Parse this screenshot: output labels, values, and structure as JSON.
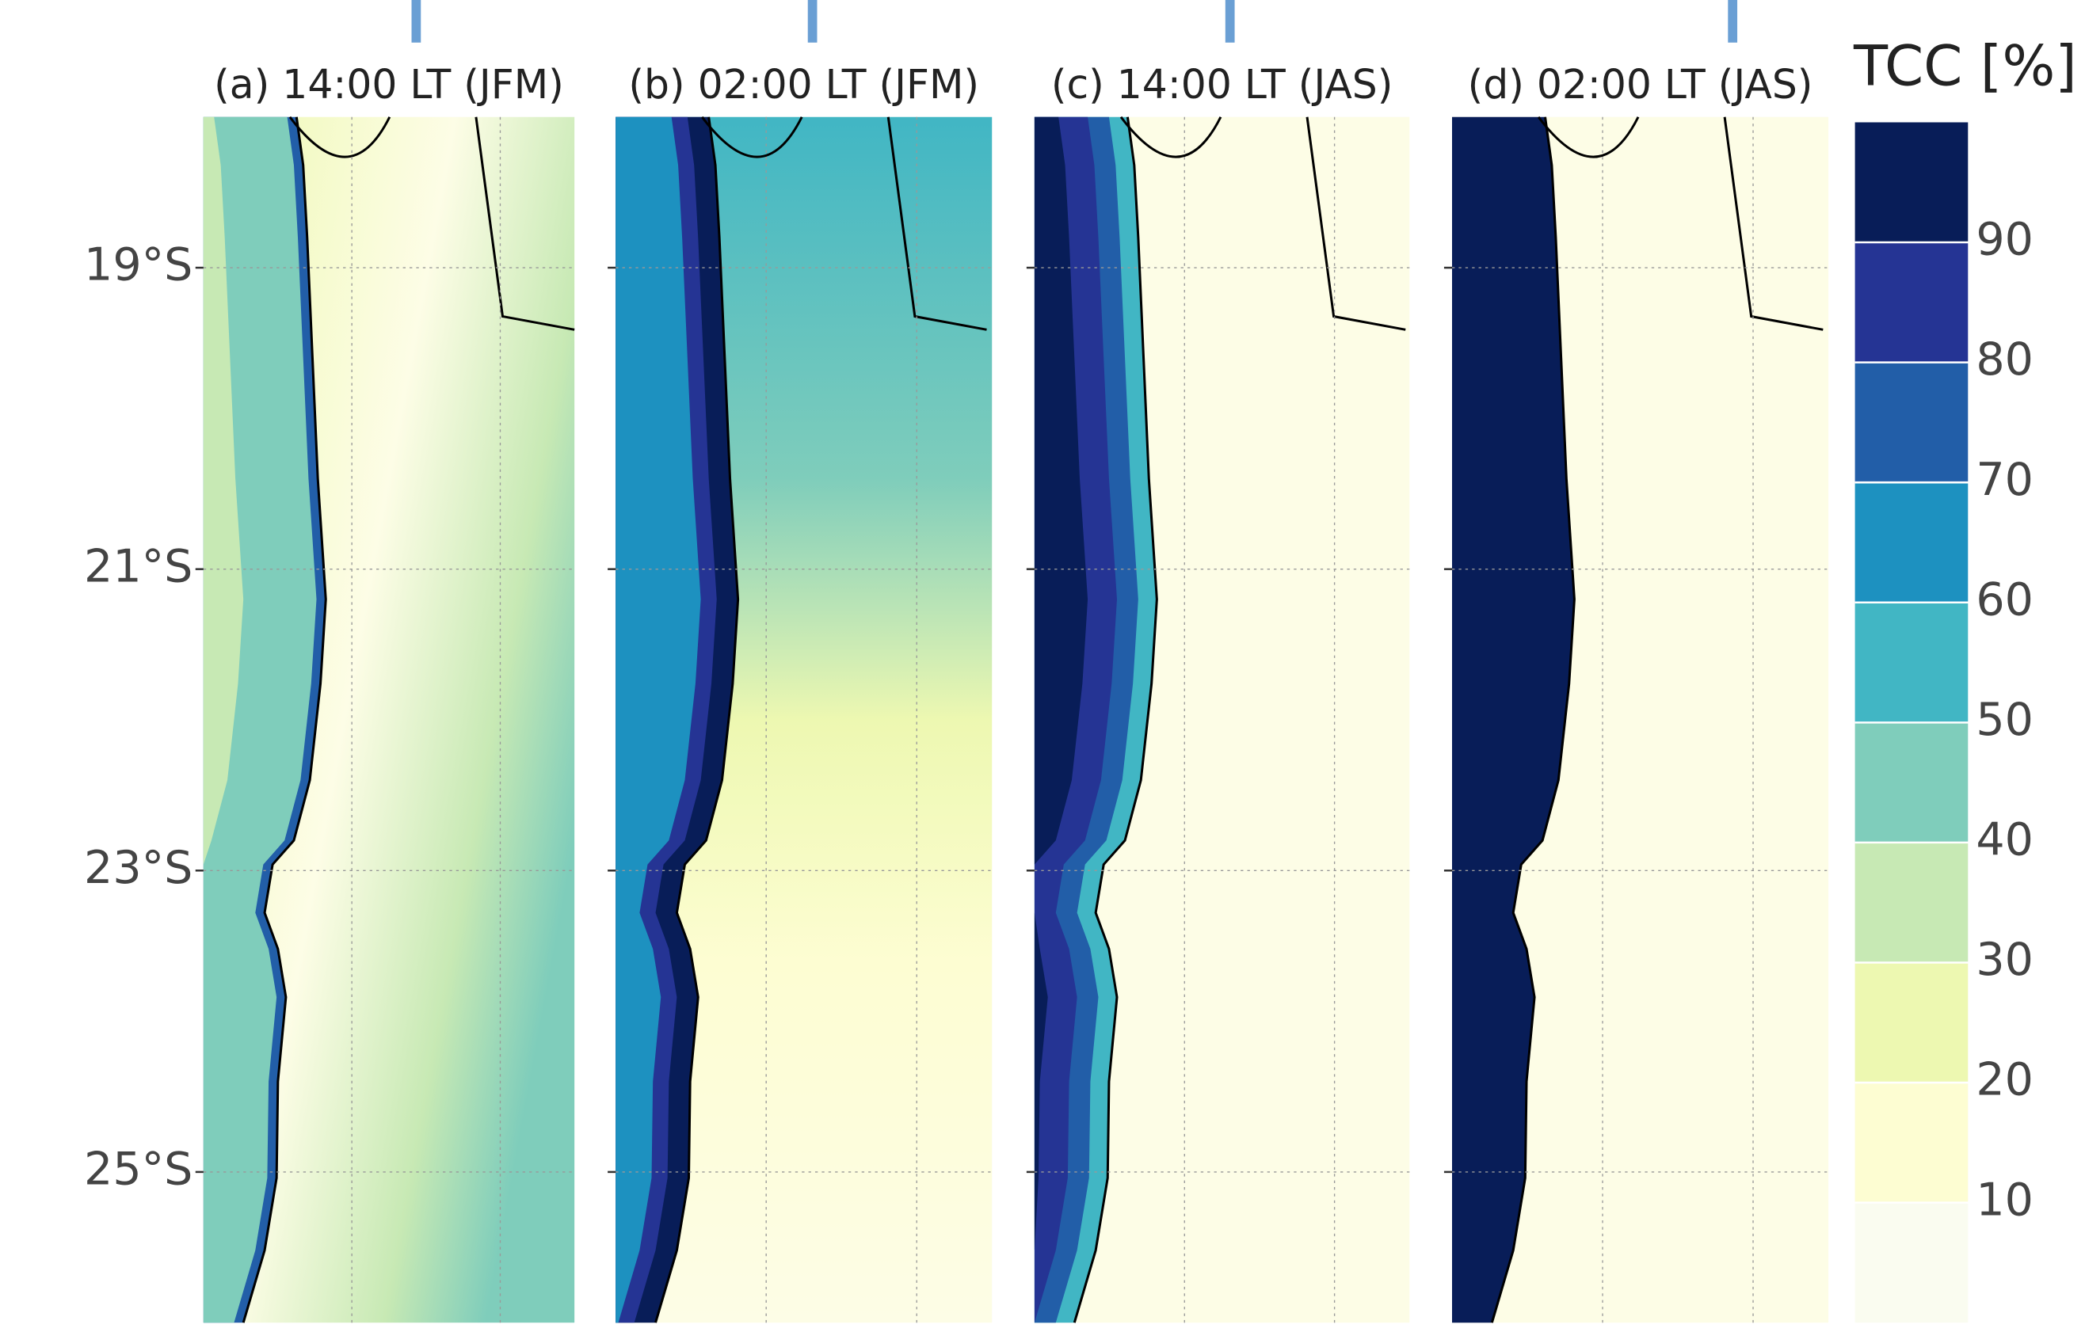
{
  "chart_data": {
    "type": "map",
    "panels": [
      {
        "title": "(a) 14:00 LT (JFM)"
      },
      {
        "title": "(b) 02:00 LT (JFM)"
      },
      {
        "title": "(c) 14:00 LT (JAS)"
      },
      {
        "title": "(d) 02:00 LT (JAS)"
      }
    ],
    "ylim": [
      -26,
      -18
    ],
    "yticks": [
      {
        "value": -19,
        "label": "19°S"
      },
      {
        "value": -21,
        "label": "21°S"
      },
      {
        "value": -23,
        "label": "23°S"
      },
      {
        "value": -25,
        "label": "25°S"
      }
    ],
    "grid": true,
    "colorbar": {
      "title": "TCC [%]",
      "lim": [
        0,
        100
      ],
      "ticks": [
        10,
        20,
        30,
        40,
        50,
        60,
        70,
        80,
        90
      ],
      "colors": [
        "#fafcf0",
        "#fdfdd2",
        "#edf8b1",
        "#c7e9b4",
        "#7fcdbb",
        "#41b6c4",
        "#1d91c0",
        "#225ea8",
        "#253494",
        "#081d58"
      ]
    }
  }
}
